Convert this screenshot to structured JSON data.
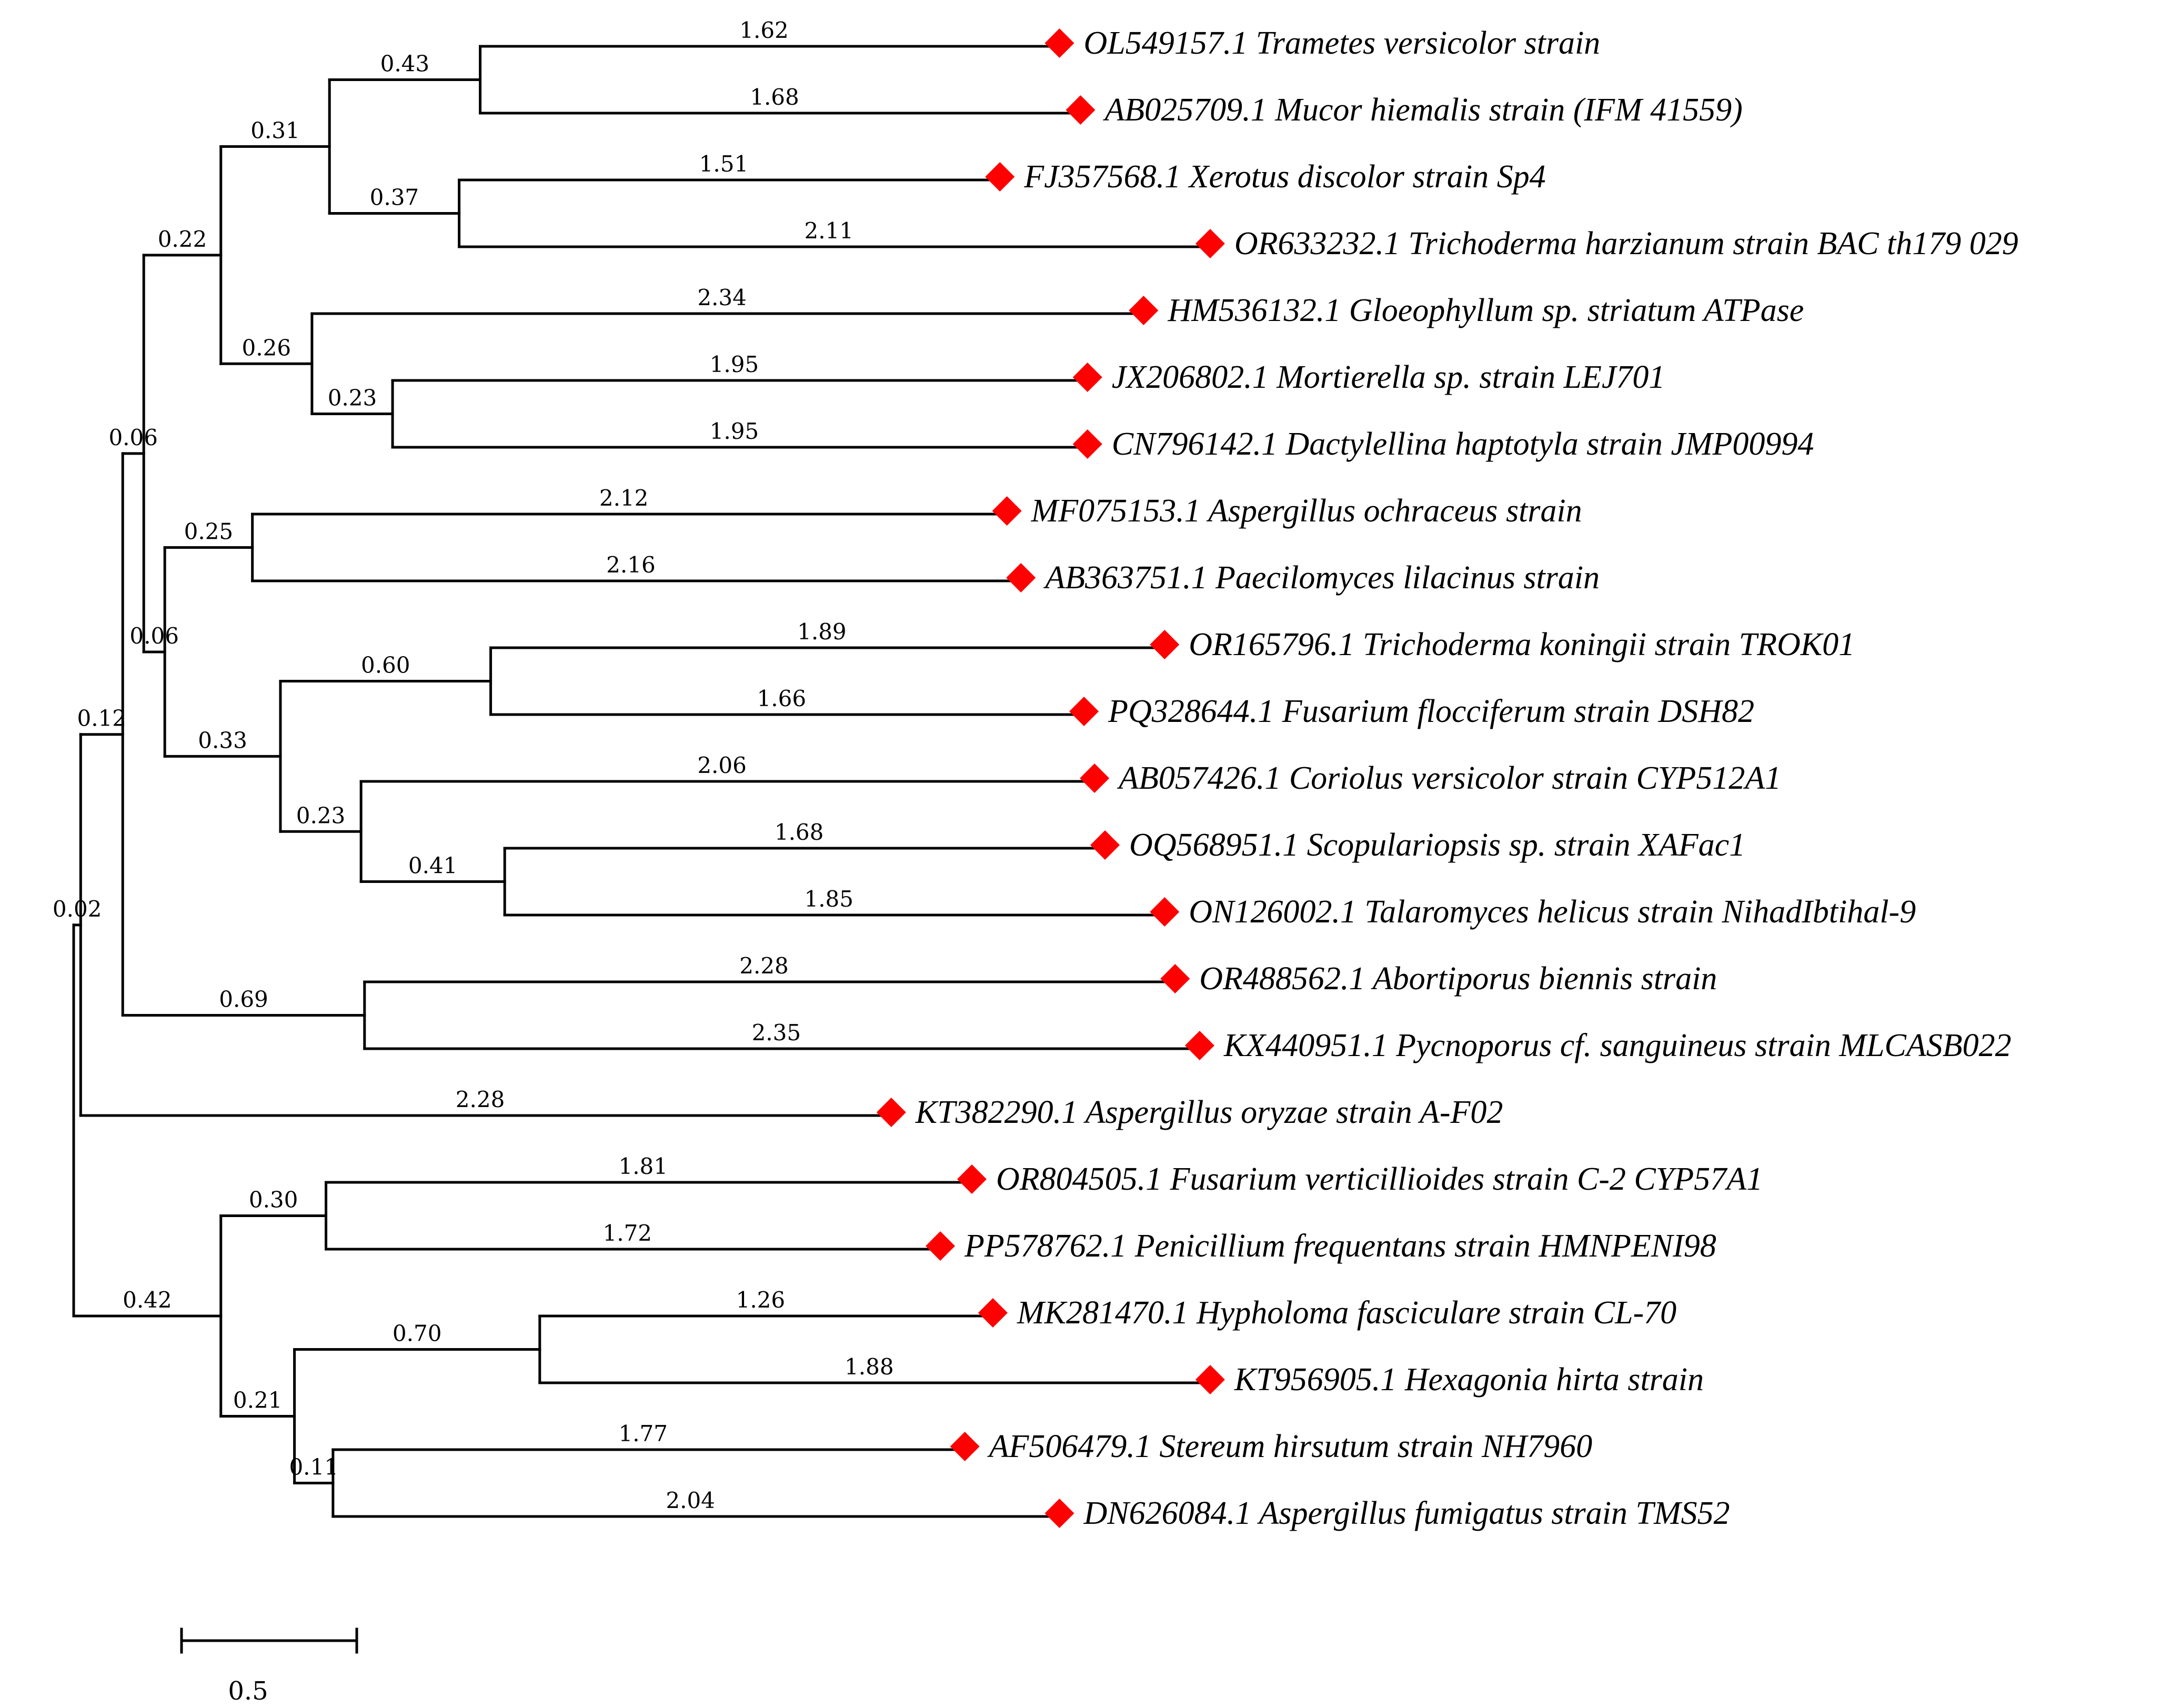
{
  "diagram_type": "phylogenetic tree",
  "marker_color": "#ff0000",
  "branch_color": "#000000",
  "scale_bar": {
    "length": 0.5,
    "label": "0.5"
  },
  "tree": {
    "name": "root",
    "children": [
      {
        "name": "n1",
        "length": 0.02,
        "children": [
          {
            "name": "n2",
            "length": 0.12,
            "children": [
              {
                "name": "n3",
                "length": 0.06,
                "children": [
                  {
                    "name": "n4",
                    "length": 0.22,
                    "children": [
                      {
                        "name": "n5",
                        "length": 0.31,
                        "children": [
                          {
                            "name": "n6",
                            "length": 0.43,
                            "children": [
                              {
                                "name": "OL549157.1 Trametes versicolor strain",
                                "length": 1.62
                              },
                              {
                                "name": "AB025709.1 Mucor hiemalis strain (IFM 41559)",
                                "length": 1.68
                              }
                            ]
                          },
                          {
                            "name": "n7",
                            "length": 0.37,
                            "children": [
                              {
                                "name": "FJ357568.1 Xerotus discolor strain Sp4",
                                "length": 1.51
                              },
                              {
                                "name": "OR633232.1 Trichoderma harzianum strain BAC th179 029",
                                "length": 2.11
                              }
                            ]
                          }
                        ]
                      },
                      {
                        "name": "n8",
                        "length": 0.26,
                        "children": [
                          {
                            "name": "HM536132.1 Gloeophyllum sp. striatum ATPase",
                            "length": 2.34
                          },
                          {
                            "name": "n9",
                            "length": 0.23,
                            "children": [
                              {
                                "name": "JX206802.1 Mortierella sp. strain LEJ701",
                                "length": 1.95
                              },
                              {
                                "name": "CN796142.1 Dactylellina haptotyla strain JMP00994",
                                "length": 1.95
                              }
                            ]
                          }
                        ]
                      }
                    ]
                  },
                  {
                    "name": "n10",
                    "length": 0.06,
                    "children": [
                      {
                        "name": "n11",
                        "length": 0.25,
                        "children": [
                          {
                            "name": "MF075153.1 Aspergillus ochraceus strain",
                            "length": 2.12
                          },
                          {
                            "name": "AB363751.1 Paecilomyces lilacinus strain",
                            "length": 2.16
                          }
                        ]
                      },
                      {
                        "name": "n12",
                        "length": 0.33,
                        "children": [
                          {
                            "name": "n13",
                            "length": 0.6,
                            "children": [
                              {
                                "name": "OR165796.1 Trichoderma koningii strain TROK01",
                                "length": 1.89
                              },
                              {
                                "name": "PQ328644.1 Fusarium flocciferum strain DSH82",
                                "length": 1.66
                              }
                            ]
                          },
                          {
                            "name": "n14",
                            "length": 0.23,
                            "children": [
                              {
                                "name": "AB057426.1 Coriolus versicolor strain CYP512A1",
                                "length": 2.06
                              },
                              {
                                "name": "n15",
                                "length": 0.41,
                                "children": [
                                  {
                                    "name": "OQ568951.1 Scopulariopsis sp. strain XAFac1",
                                    "length": 1.68
                                  },
                                  {
                                    "name": "ON126002.1 Talaromyces helicus strain NihadIbtihal-9",
                                    "length": 1.85
                                  }
                                ]
                              }
                            ]
                          }
                        ]
                      }
                    ]
                  }
                ]
              },
              {
                "name": "n16",
                "length": 0.69,
                "children": [
                  {
                    "name": "OR488562.1 Abortiporus biennis strain",
                    "length": 2.28
                  },
                  {
                    "name": "KX440951.1 Pycnoporus cf. sanguineus strain MLCASB022",
                    "length": 2.35
                  }
                ]
              }
            ]
          },
          {
            "name": "KT382290.1 Aspergillus oryzae strain A-F02",
            "length": 2.28
          }
        ]
      },
      {
        "name": "n17",
        "length": 0.42,
        "children": [
          {
            "name": "n18",
            "length": 0.3,
            "children": [
              {
                "name": "OR804505.1 Fusarium verticillioides strain C-2 CYP57A1",
                "length": 1.81
              },
              {
                "name": "PP578762.1 Penicillium frequentans strain HMNPENI98",
                "length": 1.72
              }
            ]
          },
          {
            "name": "n19",
            "length": 0.21,
            "children": [
              {
                "name": "n20",
                "length": 0.7,
                "children": [
                  {
                    "name": "MK281470.1 Hypholoma fasciculare strain CL-70",
                    "length": 1.26
                  },
                  {
                    "name": "KT956905.1 Hexagonia hirta strain",
                    "length": 1.88
                  }
                ]
              },
              {
                "name": "n21",
                "length": 0.11,
                "children": [
                  {
                    "name": "AF506479.1 Stereum hirsutum strain NH7960",
                    "length": 1.77
                  },
                  {
                    "name": "DN626084.1 Aspergillus fumigatus strain TMS52",
                    "length": 2.04
                  }
                ]
              }
            ]
          }
        ]
      }
    ]
  }
}
